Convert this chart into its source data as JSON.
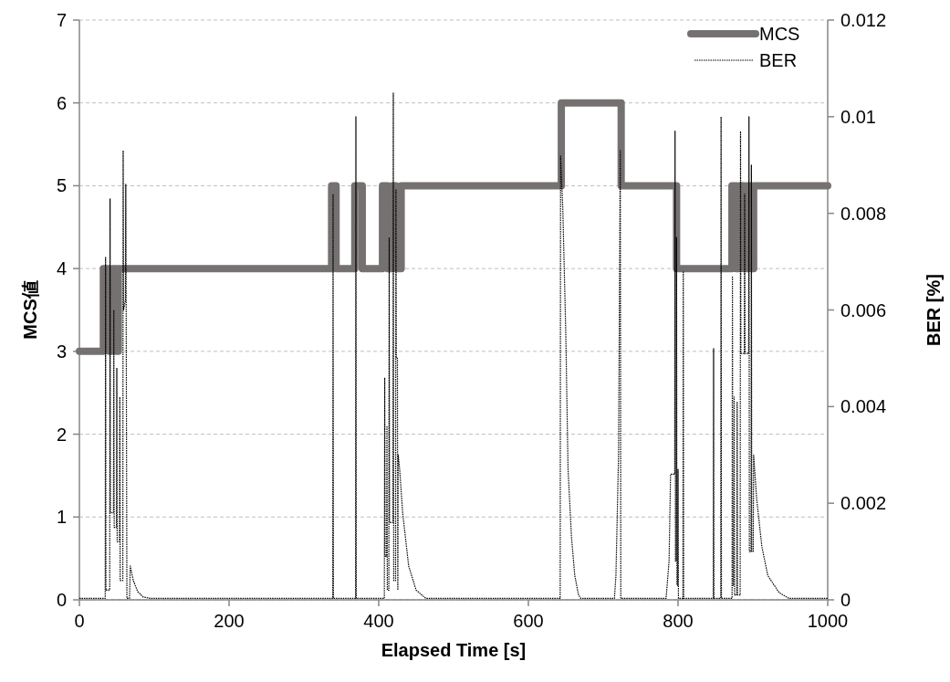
{
  "chart_data": {
    "type": "line",
    "xlabel": "Elapsed Time [s]",
    "ylabel": "MCS値",
    "y2label": "BER [%]",
    "xlim": [
      0,
      1000
    ],
    "xticks": [
      0,
      200,
      400,
      600,
      800,
      1000
    ],
    "ylim": [
      0,
      7
    ],
    "yticks": [
      0,
      1,
      2,
      3,
      4,
      5,
      6,
      7
    ],
    "y2lim": [
      0,
      0.012
    ],
    "y2ticks": [
      0,
      0.002,
      0.004,
      0.006,
      0.008,
      0.01,
      0.012
    ],
    "grid": "y",
    "legend": "top right",
    "series": [
      {
        "name": "MCS",
        "type": "step",
        "color": "#767171",
        "line_style": "solid",
        "x": [
          0,
          32,
          40,
          44,
          49,
          52,
          337,
          343,
          368,
          378,
          405,
          412,
          418,
          423,
          430,
          644,
          724,
          798,
          872,
          878,
          882,
          888,
          892,
          897,
          901,
          1000
        ],
        "values": [
          3,
          4,
          3,
          4,
          3,
          4,
          5,
          4,
          5,
          4,
          5,
          4,
          5,
          4,
          5,
          6,
          5,
          4,
          5,
          4,
          5,
          4,
          5,
          4,
          5,
          5
        ]
      },
      {
        "name": "BER",
        "axis": "y2",
        "color": "#000000",
        "line_style": "dotted",
        "x": [
          0,
          34.5,
          35,
          35.5,
          40.5,
          41,
          41.5,
          45.5,
          46,
          46.5,
          49.5,
          50,
          50.5,
          53.5,
          54,
          54.5,
          58,
          58.5,
          59,
          61.5,
          62,
          62.5,
          63.5,
          67,
          68,
          72,
          78,
          85,
          95,
          338.5,
          339,
          339.5,
          369,
          369.5,
          370,
          407.5,
          408,
          408.5,
          410.5,
          411,
          411.5,
          413.5,
          414,
          414.5,
          419,
          419.5,
          420,
          422.5,
          423,
          423.5,
          425,
          425.5,
          426,
          428,
          432,
          440,
          450,
          463,
          642.5,
          643,
          646,
          650,
          653,
          657.6,
          662,
          667,
          670,
          715,
          717,
          720.5,
          722.8,
          723.5,
          784,
          788,
          790,
          795.5,
          796,
          796.5,
          797.5,
          798,
          798.5,
          799.5,
          800,
          800.5,
          806.5,
          807,
          807.5,
          847,
          847.5,
          848,
          857,
          857.5,
          858,
          872.2,
          872.7,
          873.2,
          874.5,
          875,
          875.5,
          878.5,
          879,
          879.5,
          883,
          883.5,
          884,
          888.5,
          889,
          889.5,
          894.3,
          894.8,
          895.3,
          897.5,
          898,
          898.5,
          900.5,
          901,
          905,
          912,
          920,
          935,
          948,
          1000
        ],
        "values": [
          3e-05,
          3e-05,
          0.0071,
          0.0002,
          0.0002,
          0.0083,
          0.0018,
          0.0018,
          0.006,
          0.0015,
          0.0015,
          0.0048,
          0.0012,
          0.0012,
          0.0042,
          0.0004,
          0.0004,
          0.0093,
          0.006,
          0.0062,
          0.0086,
          0.0062,
          3e-05,
          3e-05,
          0.0007,
          0.0004,
          0.00017,
          6e-05,
          3e-05,
          3e-05,
          0.0084,
          3e-05,
          3e-05,
          0.01,
          3e-05,
          3e-05,
          0.0046,
          0.0009,
          0.0009,
          0.0036,
          0.0002,
          0.0002,
          0.0075,
          0.0016,
          0.0016,
          0.0105,
          0.0004,
          0.0004,
          0.0085,
          0.005,
          0.005,
          0.0002,
          0.003,
          0.0027,
          0.0018,
          0.0007,
          0.0002,
          3e-05,
          3e-05,
          0.0092,
          0.0081,
          0.0055,
          0.0027,
          0.0013,
          0.0005,
          0.0001,
          3e-05,
          3e-05,
          0.0005,
          0.003,
          0.0093,
          3e-05,
          3e-05,
          0.0008,
          0.0026,
          0.0026,
          0.0097,
          0.0008,
          0.0008,
          0.0075,
          0.0003,
          0.0003,
          0.0027,
          3e-05,
          3e-05,
          0.0068,
          3e-05,
          3e-05,
          0.0052,
          3e-05,
          3e-05,
          0.01,
          3e-05,
          3e-05,
          0.0067,
          0.0003,
          0.0003,
          0.0042,
          0.0001,
          0.0001,
          0.0041,
          0.0001,
          0.0001,
          0.0097,
          0.0051,
          0.0051,
          0.0084,
          0.0051,
          0.0051,
          0.01,
          0.001,
          0.001,
          0.009,
          0.001,
          0.001,
          0.003,
          0.0021,
          0.0011,
          0.0005,
          0.00015,
          3e-05,
          3e-05
        ]
      }
    ]
  }
}
